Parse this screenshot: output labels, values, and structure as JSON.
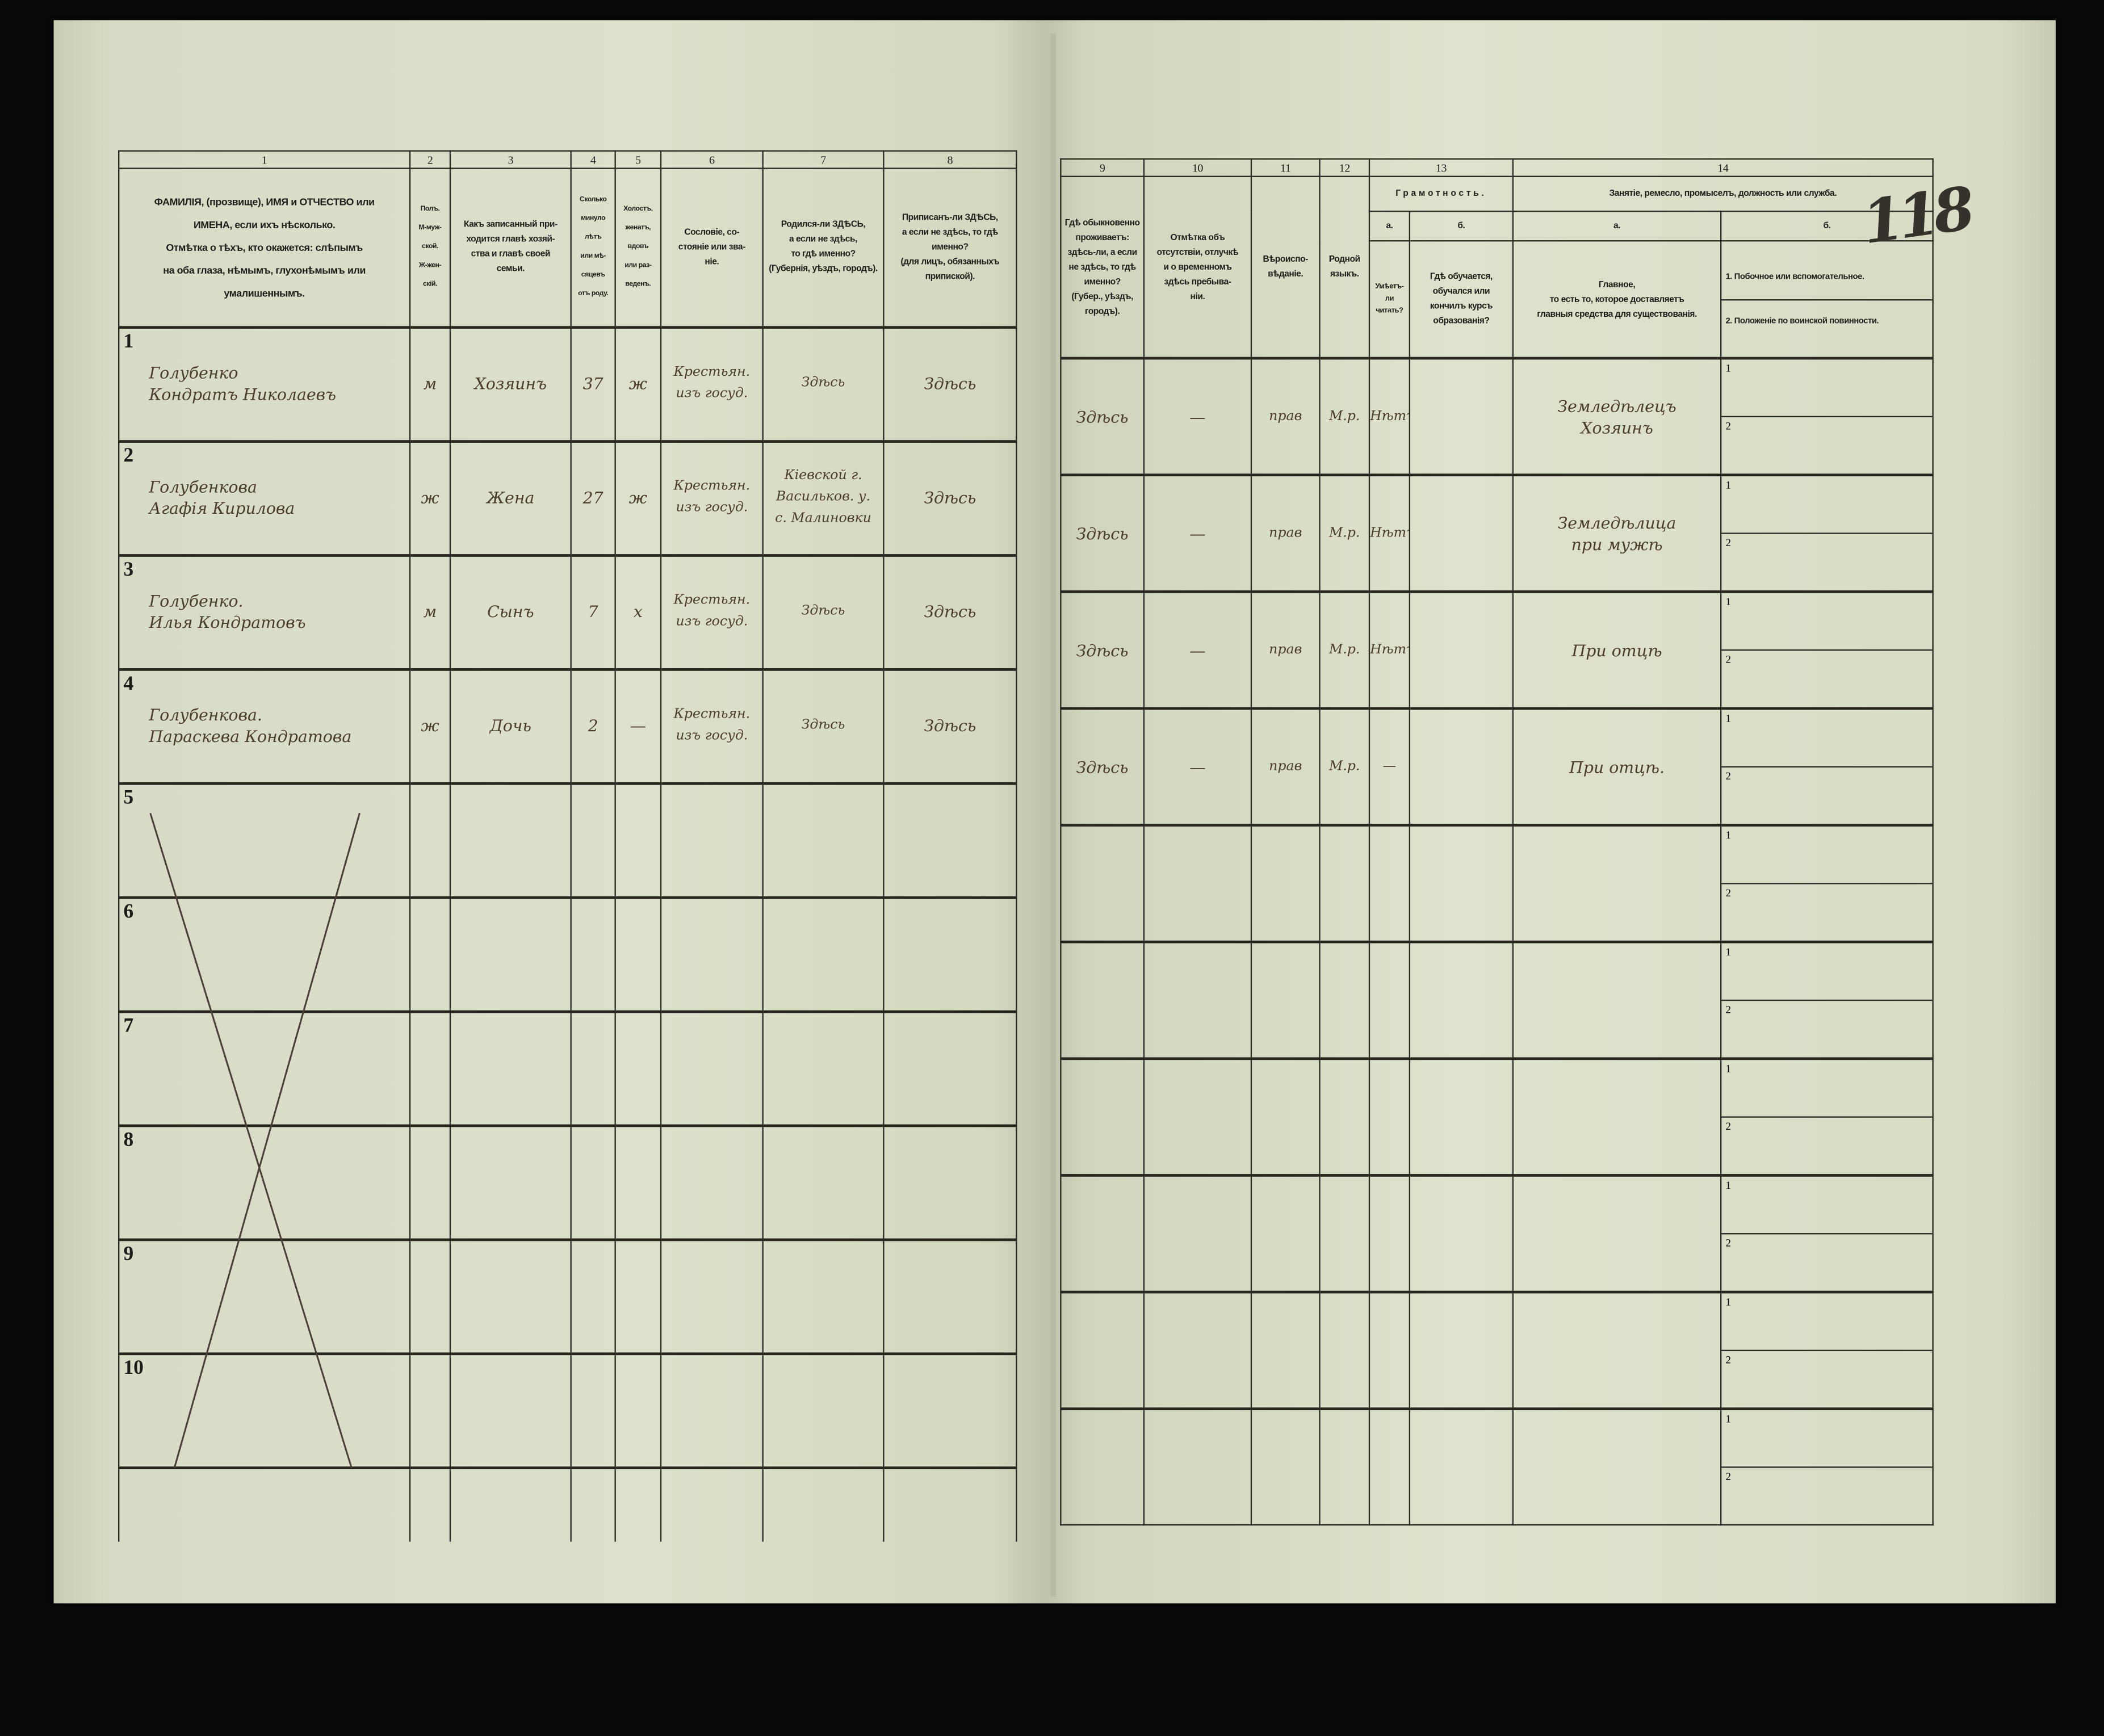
{
  "page_number": "118",
  "left_header": {
    "numbers": [
      "1",
      "2",
      "3",
      "4",
      "5",
      "6",
      "7",
      "8"
    ],
    "titles": [
      "ФАМИЛІЯ, (прозвище), ИМЯ и ОТЧЕСТВО или\nИМЕНА, если ихъ нѣсколько.\nОтмѣтка о тѣхъ, кто окажется: слѣпымъ\nна оба глаза, нѣмымъ, глухонѣмымъ или\nумалишеннымъ.",
      "Полъ.\nМ-муж-\nской.\nЖ-жен-\nскій.",
      "Какъ записанный при-\nходится главѣ хозяй-\nства и главѣ своей\nсемьи.",
      "Сколько\nминуло\nлѣтъ\nили мѣ-\nсяцевъ\nотъ роду.",
      "Холостъ,\nженатъ,\nвдовъ\nили раз-\nведенъ.",
      "Сословіе, со-\nстояніе или зва-\nніе.",
      "Родился-ли ЗДѢСЬ,\nа если не здѣсь,\nто гдѣ именно?\n(Губернія, уѣздъ, городъ).",
      "Приписанъ-ли ЗДѢСЬ,\nа если не здѣсь, то гдѣ\nименно?\n(для лицъ, обязанныхъ\nприпиской)."
    ]
  },
  "right_header": {
    "numbers": [
      "9",
      "10",
      "11",
      "12",
      "13",
      "14"
    ],
    "col9": "Гдѣ обыкновенно\nпроживаетъ:\nздѣсь-ли, а если\nне здѣсь, то гдѣ\nименно?\n(Губер., уѣздъ, городъ).",
    "col10": "Отмѣтка объ\nотсутствіи, отлучкѣ\nи о временномъ\nздѣсь пребыва-\nніи.",
    "col11": "Вѣроиспо-\nвѣданіе.",
    "col12": "Родной\nязыкъ.",
    "col13_title": "Грамотность.",
    "col13a_letter": "а.",
    "col13b_letter": "б.",
    "col13a": "Умѣетъ-\nли\nчитать?",
    "col13b": "Гдѣ обучается,\nобучался или\nкончилъ курсъ\nобразованія?",
    "col14_title": "Занятіе, ремесло, промыселъ, должность или служба.",
    "col14a_letter": "а.",
    "col14b_letter": "б.",
    "col14a": "Главное,\nто есть то, которое доставляетъ\nглавныя средства для существованія.",
    "col14b_1": "1. Побочное или вспомогательное.",
    "col14b_2": "2. Положеніе по воинской повинности."
  },
  "sub_labels": {
    "one": "1",
    "two": "2"
  },
  "rows": [
    {
      "no": "1",
      "name": "Голубенко\nКондратъ Николаевъ",
      "sex": "м",
      "relation": "Хозяинъ",
      "age": "37",
      "marital": "ж",
      "estate": "Крестьян.\nизъ госуд.",
      "birthplace": "Здѣсь",
      "registered": "Здѣсь",
      "residence": "Здѣсь",
      "absence": "—",
      "religion": "прав",
      "language": "М.р.",
      "literacy": "Нѣтъ",
      "education": "",
      "occupation": "Земледѣлецъ\nХозяинъ",
      "occ_side": "",
      "military": ""
    },
    {
      "no": "2",
      "name": "Голубенкова\nАгафія Кирилова",
      "sex": "ж",
      "relation": "Жена",
      "age": "27",
      "marital": "ж",
      "estate": "Крестьян.\nизъ госуд.",
      "birthplace": "Кіевской г.\nВасильков. у.\nс. Малиновки",
      "registered": "Здѣсь",
      "residence": "Здѣсь",
      "absence": "—",
      "religion": "прав",
      "language": "М.р.",
      "literacy": "Нѣтъ",
      "education": "",
      "occupation": "Земледѣлица\nпри мужѣ",
      "occ_side": "",
      "military": ""
    },
    {
      "no": "3",
      "name": "Голубенко.\nИлья Кондратовъ",
      "sex": "м",
      "relation": "Сынъ",
      "age": "7",
      "marital": "х",
      "estate": "Крестьян.\nизъ госуд.",
      "birthplace": "Здѣсь",
      "registered": "Здѣсь",
      "residence": "Здѣсь",
      "absence": "—",
      "religion": "прав",
      "language": "М.р.",
      "literacy": "Нѣтъ",
      "education": "",
      "occupation": "При отцѣ",
      "occ_side": "",
      "military": ""
    },
    {
      "no": "4",
      "name": "Голубенкова.\nПараскева Кондратова",
      "sex": "ж",
      "relation": "Дочь",
      "age": "2",
      "marital": "—",
      "estate": "Крестьян.\nизъ госуд.",
      "birthplace": "Здѣсь",
      "registered": "Здѣсь",
      "residence": "Здѣсь",
      "absence": "—",
      "religion": "прав",
      "language": "М.р.",
      "literacy": "—",
      "education": "",
      "occupation": "При отцѣ.",
      "occ_side": "",
      "military": ""
    },
    {
      "no": "5"
    },
    {
      "no": "6"
    },
    {
      "no": "7"
    },
    {
      "no": "8"
    },
    {
      "no": "9"
    },
    {
      "no": "10"
    }
  ],
  "colors": {
    "paper": "#dde0ca",
    "ink": "#4a3c2b",
    "print": "#1f1f1b",
    "background": "#080808"
  }
}
